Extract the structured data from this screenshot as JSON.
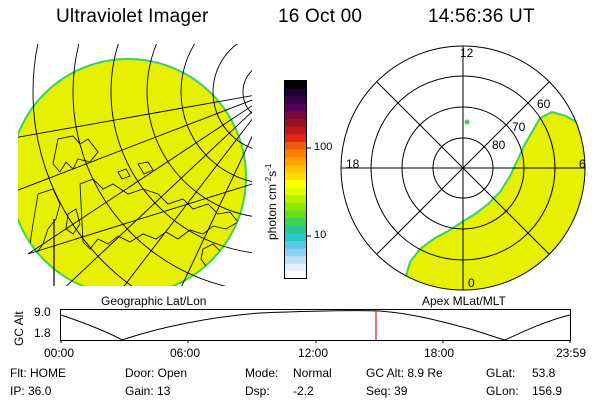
{
  "header": {
    "instrument": "Ultraviolet Imager",
    "date": "16 Oct 00",
    "time": "14:56:36 UT"
  },
  "left_panel": {
    "caption": "Geographic Lat/Lon"
  },
  "right_panel": {
    "caption": "Apex MLat/MLT",
    "mlt_labels": {
      "top": "12",
      "left": "18",
      "right": "6",
      "bottom": "0"
    },
    "lat_labels": [
      "60",
      "70",
      "80"
    ]
  },
  "colorbar": {
    "unit_label": "photon cm",
    "unit_sup1": "-2",
    "unit_mid": "s",
    "unit_sup2": "-1",
    "tick_100": "100",
    "tick_10": "10",
    "colors": [
      "#000000",
      "#1a0033",
      "#3c0046",
      "#5a005a",
      "#7a0a3a",
      "#9a1020",
      "#c01818",
      "#e02810",
      "#f05a10",
      "#ff8000",
      "#ffa000",
      "#ffc000",
      "#ffe000",
      "#ffff00",
      "#dcff00",
      "#b4f000",
      "#8ce600",
      "#64dc1e",
      "#3cd25a",
      "#28c896",
      "#28c8c8",
      "#5ac8e6",
      "#8cd2f0",
      "#bee1f5",
      "#e6f0fa",
      "#ffffff"
    ]
  },
  "timeline": {
    "axis_label": "GC Alt",
    "y_top": "9.0",
    "y_bottom": "1.8",
    "ticks": [
      "00:00",
      "06:00",
      "12:00",
      "18:00",
      "23:59"
    ],
    "marker_color": "#e02020"
  },
  "status": {
    "row1": {
      "flt": "Flt: HOME",
      "door": "Door: Open",
      "mode_label": "Mode:",
      "mode_value": "Normal",
      "gc_alt": "GC Alt: 8.9 Re",
      "glat_label": "GLat:",
      "glat_value": "53.8"
    },
    "row2": {
      "ip": "IP: 36.0",
      "gain": "Gain: 13",
      "dsp_label": "Dsp:",
      "dsp_value": "-2.2",
      "seq": "Seq: 39",
      "glon_label": "GLon:",
      "glon_value": "156.9"
    }
  },
  "colors": {
    "aurora_fill": "#e6f000",
    "aurora_edge": "#3cd25a"
  }
}
